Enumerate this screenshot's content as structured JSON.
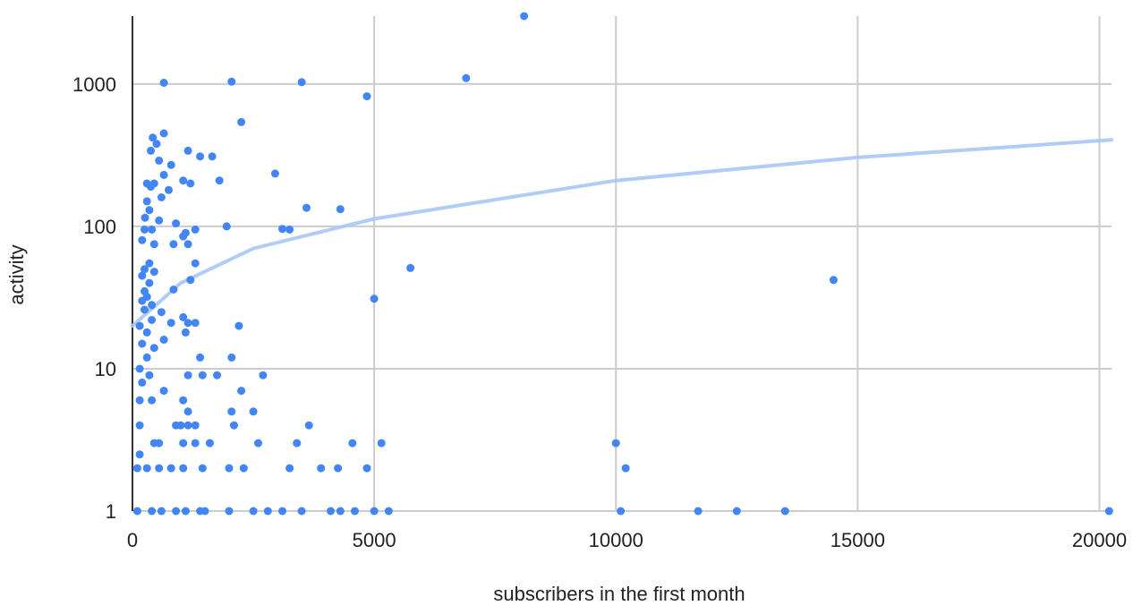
{
  "chart_data": {
    "type": "scatter",
    "title": "",
    "xlabel": "subscribers in the first month",
    "ylabel": "activity",
    "xlim": [
      0,
      20250
    ],
    "ylim": [
      1,
      3000
    ],
    "y_scale": "log",
    "grid": true,
    "x_ticks": [
      {
        "value": 0,
        "label": "0"
      },
      {
        "value": 5000,
        "label": "5000"
      },
      {
        "value": 10000,
        "label": "10000"
      },
      {
        "value": 15000,
        "label": "15000"
      },
      {
        "value": 20000,
        "label": "20000"
      }
    ],
    "y_ticks": [
      {
        "value": 1,
        "label": "1"
      },
      {
        "value": 10,
        "label": "10"
      },
      {
        "value": 100,
        "label": "100"
      },
      {
        "value": 1000,
        "label": "1000"
      }
    ],
    "colors": {
      "points": "#4285f4",
      "trendline": "#a8c7f5",
      "grid": "#cccccc",
      "axis": "#333333"
    },
    "trendline": {
      "type": "linear",
      "points": [
        [
          0,
          20
        ],
        [
          1000,
          40
        ],
        [
          2500,
          70
        ],
        [
          5000,
          113
        ],
        [
          10000,
          210
        ],
        [
          15000,
          305
        ],
        [
          20250,
          405
        ]
      ]
    },
    "points": [
      [
        8100,
        3000
      ],
      [
        6900,
        1100
      ],
      [
        2050,
        1040
      ],
      [
        3500,
        1030
      ],
      [
        650,
        1020
      ],
      [
        4850,
        820
      ],
      [
        2250,
        540
      ],
      [
        650,
        450
      ],
      [
        420,
        420
      ],
      [
        500,
        380
      ],
      [
        380,
        340
      ],
      [
        1150,
        340
      ],
      [
        1400,
        310
      ],
      [
        1650,
        310
      ],
      [
        550,
        290
      ],
      [
        800,
        270
      ],
      [
        2950,
        235
      ],
      [
        650,
        230
      ],
      [
        1050,
        210
      ],
      [
        1800,
        210
      ],
      [
        450,
        200
      ],
      [
        1200,
        200
      ],
      [
        300,
        200
      ],
      [
        380,
        190
      ],
      [
        750,
        180
      ],
      [
        600,
        160
      ],
      [
        300,
        150
      ],
      [
        3600,
        135
      ],
      [
        4300,
        132
      ],
      [
        350,
        130
      ],
      [
        260,
        115
      ],
      [
        550,
        110
      ],
      [
        900,
        105
      ],
      [
        1950,
        100
      ],
      [
        3100,
        96
      ],
      [
        3250,
        95
      ],
      [
        1100,
        90
      ],
      [
        1300,
        95
      ],
      [
        250,
        95
      ],
      [
        400,
        95
      ],
      [
        1050,
        85
      ],
      [
        200,
        80
      ],
      [
        450,
        75
      ],
      [
        850,
        75
      ],
      [
        1150,
        75
      ],
      [
        1300,
        55
      ],
      [
        350,
        55
      ],
      [
        5750,
        51
      ],
      [
        250,
        50
      ],
      [
        450,
        48
      ],
      [
        200,
        45
      ],
      [
        350,
        40
      ],
      [
        1200,
        42
      ],
      [
        14500,
        42
      ],
      [
        850,
        36
      ],
      [
        250,
        35
      ],
      [
        300,
        32
      ],
      [
        5000,
        31
      ],
      [
        200,
        30
      ],
      [
        400,
        28
      ],
      [
        250,
        26
      ],
      [
        600,
        25
      ],
      [
        1050,
        23
      ],
      [
        1150,
        21
      ],
      [
        1300,
        21
      ],
      [
        400,
        22
      ],
      [
        800,
        21
      ],
      [
        2200,
        20
      ],
      [
        150,
        20
      ],
      [
        300,
        18
      ],
      [
        1100,
        18
      ],
      [
        650,
        16
      ],
      [
        200,
        15
      ],
      [
        450,
        14
      ],
      [
        1400,
        12
      ],
      [
        2050,
        12
      ],
      [
        300,
        12
      ],
      [
        150,
        10
      ],
      [
        1150,
        9
      ],
      [
        1450,
        9
      ],
      [
        1750,
        9
      ],
      [
        2700,
        9
      ],
      [
        200,
        8
      ],
      [
        350,
        9
      ],
      [
        2250,
        7
      ],
      [
        650,
        7
      ],
      [
        1050,
        6
      ],
      [
        150,
        6
      ],
      [
        400,
        6
      ],
      [
        2050,
        5
      ],
      [
        2500,
        5
      ],
      [
        1150,
        5
      ],
      [
        3650,
        4
      ],
      [
        2100,
        4
      ],
      [
        900,
        4
      ],
      [
        1000,
        4
      ],
      [
        1150,
        4
      ],
      [
        1300,
        4
      ],
      [
        150,
        4
      ],
      [
        450,
        3
      ],
      [
        550,
        3
      ],
      [
        1050,
        3
      ],
      [
        1300,
        3
      ],
      [
        1600,
        3
      ],
      [
        2600,
        3
      ],
      [
        3400,
        3
      ],
      [
        4550,
        3
      ],
      [
        5150,
        3
      ],
      [
        10000,
        3
      ],
      [
        150,
        2.5
      ],
      [
        550,
        2
      ],
      [
        800,
        2
      ],
      [
        1050,
        2
      ],
      [
        1450,
        2
      ],
      [
        2000,
        2
      ],
      [
        2300,
        2
      ],
      [
        3250,
        2
      ],
      [
        3900,
        2
      ],
      [
        4250,
        2
      ],
      [
        4850,
        2
      ],
      [
        10200,
        2
      ],
      [
        100,
        2
      ],
      [
        300,
        2
      ],
      [
        100,
        1
      ],
      [
        400,
        1
      ],
      [
        600,
        1
      ],
      [
        900,
        1
      ],
      [
        1100,
        1
      ],
      [
        1400,
        1
      ],
      [
        1500,
        1
      ],
      [
        2000,
        1
      ],
      [
        2500,
        1
      ],
      [
        2800,
        1
      ],
      [
        3100,
        1
      ],
      [
        3500,
        1
      ],
      [
        4100,
        1
      ],
      [
        4300,
        1
      ],
      [
        4600,
        1
      ],
      [
        5000,
        1
      ],
      [
        5300,
        1
      ],
      [
        10100,
        1
      ],
      [
        11700,
        1
      ],
      [
        12500,
        1
      ],
      [
        13500,
        1
      ],
      [
        20200,
        1
      ]
    ]
  }
}
